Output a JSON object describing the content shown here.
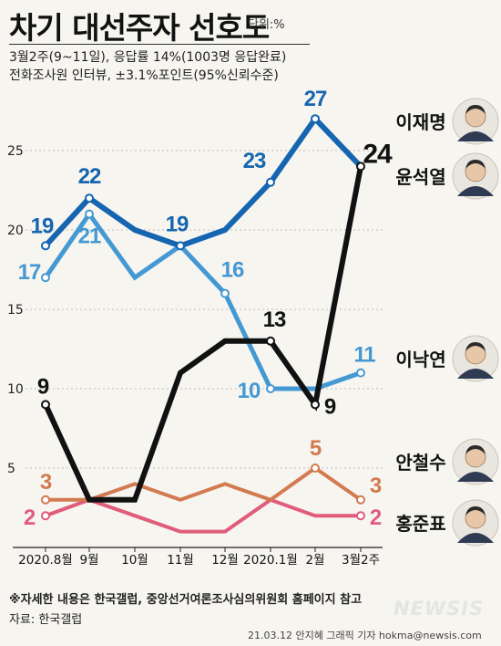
{
  "header": {
    "title": "차기 대선주자 선호도",
    "unit": "단위:%",
    "subtitle1": "3월2주(9~11일), 응답률 14%(1003명 응답완료)",
    "subtitle2": "전화조사원 인터뷰, ±3.1%포인트(95%신뢰수준)"
  },
  "footer": {
    "note": "※자세한 내용은 한국갤럽, 중앙선거여론조사심의위원회 홈페이지 참고",
    "source": "자료: 한국갤럽",
    "credit": "21.03.12 안지혜 그래픽 기자 hokma@newsis.com",
    "logo": "NEWSIS"
  },
  "chart_data": {
    "type": "line",
    "x": [
      "2020.8월",
      "9월",
      "10월",
      "11월",
      "12월",
      "2020.1월",
      "2월",
      "3월2주"
    ],
    "ylim": [
      0,
      28
    ],
    "yticks": [
      5,
      10,
      15,
      20,
      25
    ],
    "grid": true,
    "series": [
      {
        "name": "이재명",
        "color": "#1565b0",
        "values": [
          19,
          22,
          20,
          19,
          20,
          23,
          27,
          24
        ],
        "labels": {
          "0": "19",
          "1": "22",
          "3": "19",
          "5": "23",
          "6": "27"
        }
      },
      {
        "name": "윤석열",
        "color": "#111111",
        "values": [
          9,
          3,
          3,
          11,
          13,
          13,
          9,
          24
        ],
        "labels": {
          "0": "9",
          "5": "13",
          "6": "9",
          "7": "24"
        }
      },
      {
        "name": "이낙연",
        "color": "#4499d3",
        "values": [
          17,
          21,
          17,
          19,
          16,
          10,
          10,
          11
        ],
        "labels": {
          "0": "17",
          "1": "21",
          "4": "16",
          "5": "10",
          "7": "11"
        }
      },
      {
        "name": "안철수",
        "color": "#d27a50",
        "values": [
          3,
          3,
          4,
          3,
          4,
          3,
          5,
          3
        ],
        "labels": {
          "0": "3",
          "6": "5",
          "7": "3"
        }
      },
      {
        "name": "홍준표",
        "color": "#e05c7a",
        "values": [
          2,
          3,
          2,
          1,
          1,
          3,
          2,
          2
        ],
        "labels": {
          "0": "2",
          "7": "2"
        }
      }
    ]
  }
}
